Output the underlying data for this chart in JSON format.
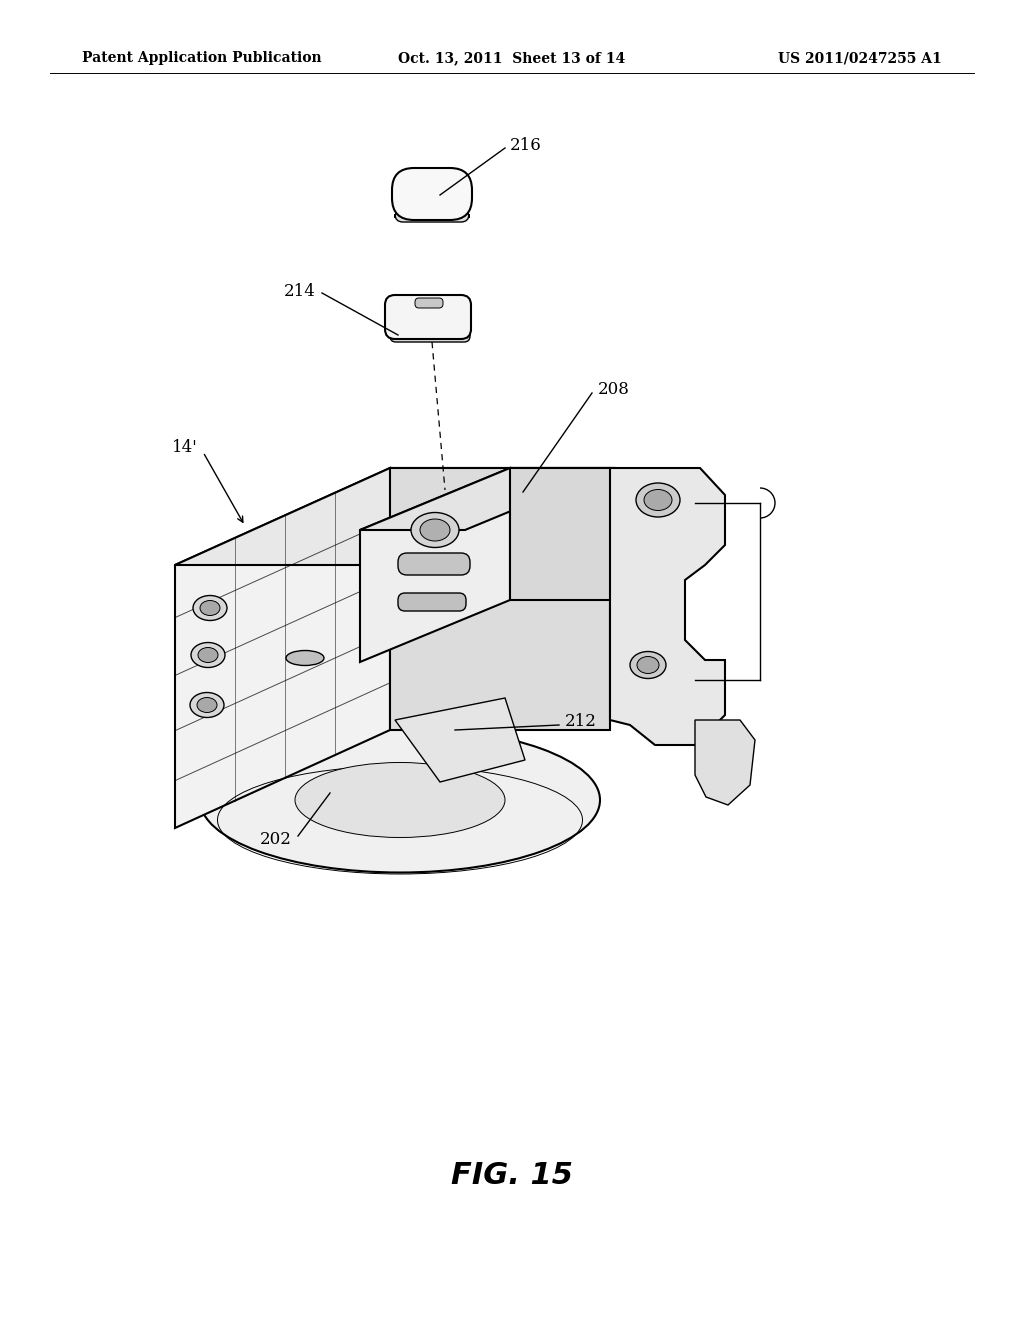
{
  "header_left": "Patent Application Publication",
  "header_center": "Oct. 13, 2011  Sheet 13 of 14",
  "header_right": "US 2011/0247255 A1",
  "figure_label": "FIG. 15",
  "bg_color": "#ffffff",
  "lc": "#000000"
}
